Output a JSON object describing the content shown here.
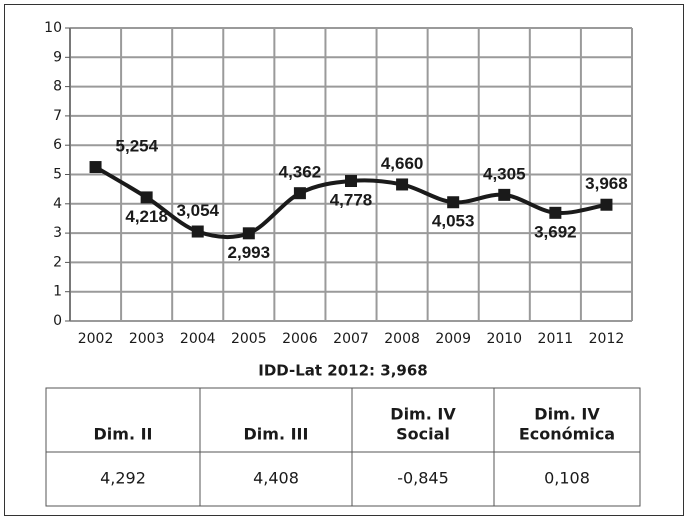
{
  "chart_data": {
    "type": "line",
    "categories": [
      "2002",
      "2003",
      "2004",
      "2005",
      "2006",
      "2007",
      "2008",
      "2009",
      "2010",
      "2011",
      "2012"
    ],
    "values": [
      5.254,
      4.218,
      3.054,
      2.993,
      4.362,
      4.778,
      4.66,
      4.053,
      4.305,
      3.692,
      3.968
    ],
    "value_labels": [
      "5,254",
      "4,218",
      "3,054",
      "2,993",
      "4,362",
      "4,778",
      "4,660",
      "4,053",
      "4,305",
      "3,692",
      "3,968"
    ],
    "color": "#1a1a1a",
    "ylim": [
      0,
      10
    ],
    "yticks": [
      0,
      1,
      2,
      3,
      4,
      5,
      6,
      7,
      8,
      9,
      10
    ],
    "grid": true,
    "caption": "IDD-Lat 2012: 3,968"
  },
  "table": {
    "header": [
      [
        "Dim. II"
      ],
      [
        "Dim. III"
      ],
      [
        "Dim. IV",
        "Social"
      ],
      [
        "Dim. IV",
        "Económica"
      ]
    ],
    "rows": [
      [
        "4,292",
        "4,408",
        "-0,845",
        "0,108"
      ]
    ]
  }
}
